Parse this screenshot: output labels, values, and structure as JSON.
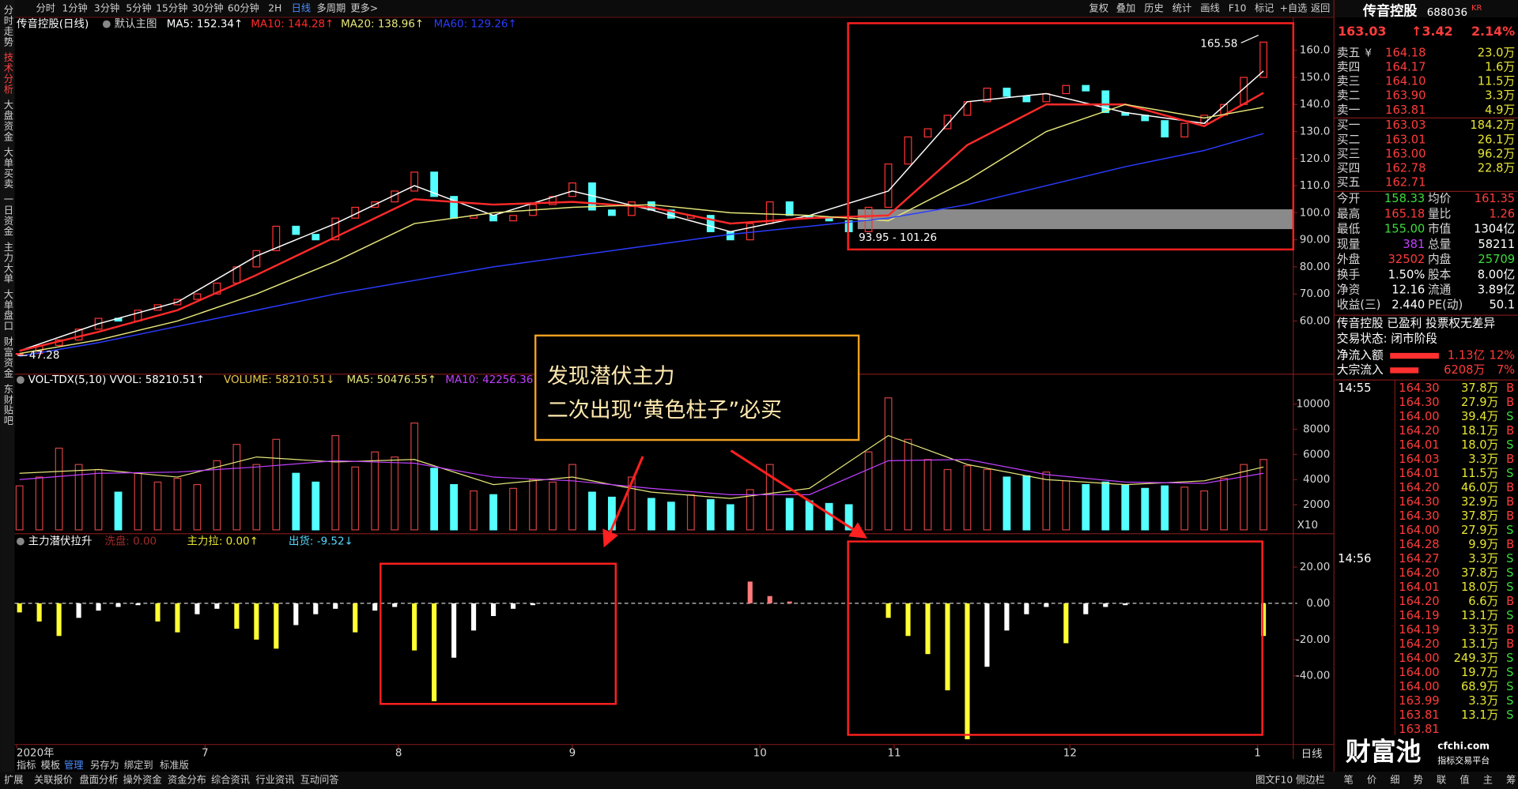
{
  "toolbar": {
    "periods": [
      "分时",
      "1分钟",
      "3分钟",
      "5分钟",
      "15分钟",
      "30分钟",
      "60分钟",
      "2H",
      "日线",
      "多周期",
      "更多>"
    ],
    "active_period_index": 8,
    "tools": [
      "复权",
      "叠加",
      "历史",
      "统计",
      "画线",
      "F10",
      "标记",
      "+自选",
      "返回"
    ]
  },
  "side_tabs": [
    "分时走势",
    "技术分析",
    "大盘资金",
    "大单买卖",
    "一日资金",
    "主力大单",
    "大单盘口",
    "财富资金",
    "东财贴吧"
  ],
  "side_active_index": 1,
  "main_chart": {
    "title": "传音控股(日线)",
    "template": "默认主图",
    "ma": [
      {
        "label": "MA5: 152.34↑",
        "color": "#ffffff",
        "x": [
          0,
          4,
          8,
          12,
          16,
          20,
          24,
          28,
          32,
          36,
          40,
          44,
          48,
          52,
          56,
          60,
          63
        ],
        "values": [
          49,
          59,
          67,
          84,
          96,
          110,
          99,
          108,
          101,
          93,
          99,
          108,
          141,
          144,
          137,
          133,
          152.34
        ]
      },
      {
        "label": "MA10: 144.28↑",
        "color": "#ff2a2a",
        "x": [
          0,
          4,
          8,
          12,
          16,
          20,
          24,
          28,
          32,
          36,
          40,
          44,
          48,
          52,
          56,
          60,
          63
        ],
        "values": [
          49,
          56,
          64,
          77,
          91,
          105,
          103,
          104,
          102,
          96,
          98,
          99,
          125,
          140,
          140,
          132,
          144.28
        ]
      },
      {
        "label": "MA20: 138.96↑",
        "color": "#e6e67a",
        "x": [
          0,
          4,
          8,
          12,
          16,
          20,
          24,
          28,
          32,
          36,
          40,
          44,
          48,
          52,
          56,
          60,
          63
        ],
        "values": [
          48,
          53,
          60,
          70,
          82,
          96,
          100,
          102,
          103,
          100,
          99,
          97,
          112,
          130,
          140,
          135,
          138.96
        ]
      },
      {
        "label": "MA60: 129.26↑",
        "color": "#2a3cff",
        "x": [
          0,
          4,
          8,
          12,
          16,
          20,
          24,
          28,
          32,
          36,
          40,
          44,
          48,
          52,
          56,
          60,
          63
        ],
        "values": [
          47,
          52,
          58,
          64,
          70,
          75,
          80,
          84,
          88,
          92,
          95,
          98,
          103,
          110,
          117,
          123,
          129.26
        ]
      }
    ],
    "closes": [
      48,
      51,
      53,
      57,
      61,
      60,
      64,
      66,
      68,
      70,
      74,
      80,
      86,
      95,
      92,
      90,
      98,
      102,
      104,
      108,
      115,
      106,
      98,
      99,
      97,
      99,
      103,
      106,
      111,
      101,
      99,
      104,
      101,
      98,
      99,
      93,
      90,
      96,
      104,
      99,
      98,
      97,
      93,
      102,
      118,
      128,
      131,
      136,
      141,
      146,
      143,
      141,
      144,
      147,
      145,
      137,
      136,
      134,
      128,
      133,
      136,
      140,
      150,
      163.03
    ],
    "up_color": "#ff3232",
    "down_color": "#54ffff",
    "ylim": [
      40,
      170
    ],
    "yticks": [
      {
        "value": 60,
        "label": "60.00"
      },
      {
        "value": 70,
        "label": "70.00"
      },
      {
        "value": 80,
        "label": "80.00"
      },
      {
        "value": 90,
        "label": "90.00"
      },
      {
        "value": 100,
        "label": "100.0"
      },
      {
        "value": 110,
        "label": "110.0"
      },
      {
        "value": 120,
        "label": "120.0"
      },
      {
        "value": 130,
        "label": "130.0"
      },
      {
        "value": 140,
        "label": "140.0"
      },
      {
        "value": 150,
        "label": "150.0"
      },
      {
        "value": 160,
        "label": "160.0"
      }
    ],
    "high_marker": 165.58,
    "low_marker": 47.28,
    "zone": {
      "low": 93.95,
      "high": 101.26,
      "label": "93.95 - 101.26"
    },
    "x_labels": [
      {
        "label": "2020年",
        "x": -0.15
      },
      {
        "label": "7",
        "x": 9.4
      },
      {
        "label": "8",
        "x": 19.2
      },
      {
        "label": "9",
        "x": 28
      },
      {
        "label": "10",
        "x": 37.5
      },
      {
        "label": "11",
        "x": 44.3
      },
      {
        "label": "12",
        "x": 53.2
      },
      {
        "label": "1",
        "x": 62.7
      }
    ],
    "period_label": "日线"
  },
  "volume_chart": {
    "labels": [
      {
        "text": "VOL-TDX(5,10) VVOL: 58210.51↑",
        "color": "#ffffff"
      },
      {
        "text": "VOLUME: 58210.51↓",
        "color": "#e6c84a"
      },
      {
        "text": "MA5: 50476.55↑",
        "color": "#e6e67a"
      },
      {
        "text": "MA10: 42256.36↑",
        "color": "#c040ff"
      }
    ],
    "values": [
      3500,
      4200,
      6500,
      5200,
      4800,
      3000,
      4500,
      3800,
      4100,
      3600,
      5500,
      6800,
      5200,
      7200,
      4500,
      3800,
      7500,
      5000,
      6200,
      5800,
      8500,
      4900,
      3600,
      3100,
      2800,
      3300,
      4000,
      3800,
      5200,
      3000,
      2600,
      4200,
      2500,
      2200,
      2800,
      2400,
      2000,
      3200,
      5200,
      2500,
      2300,
      2100,
      2000,
      6200,
      10500,
      7200,
      5600,
      4800,
      5100,
      4800,
      4200,
      4300,
      4600,
      3900,
      3600,
      3800,
      3600,
      3300,
      3500,
      3400,
      3100,
      4100,
      5200,
      5600
    ],
    "lines": [
      {
        "color": "#e6e67a",
        "x": [
          0,
          4,
          8,
          12,
          16,
          20,
          24,
          28,
          32,
          36,
          40,
          44,
          48,
          52,
          56,
          60,
          63
        ],
        "values": [
          4500,
          4800,
          4200,
          5800,
          5400,
          5600,
          3600,
          4200,
          3000,
          2500,
          3300,
          7500,
          5200,
          4000,
          3600,
          3900,
          5000
        ]
      },
      {
        "color": "#c040ff",
        "x": [
          0,
          4,
          8,
          12,
          16,
          20,
          24,
          28,
          32,
          36,
          40,
          44,
          48,
          52,
          56,
          60,
          63
        ],
        "values": [
          4000,
          4500,
          4600,
          5000,
          5500,
          5300,
          4200,
          3900,
          3300,
          2800,
          2800,
          5500,
          5600,
          4400,
          3800,
          3700,
          4500
        ]
      }
    ],
    "ylim": [
      0,
      11230
    ],
    "yticks": [
      2000,
      4000,
      6000,
      8000,
      10000
    ],
    "unit_label": "X10"
  },
  "indicator_chart": {
    "title": "主力潜伏拉升",
    "legend": [
      {
        "label": "洗盘: 0.00",
        "color": "#a02a2a"
      },
      {
        "label": "主力拉: 0.00↑",
        "color": "#e6e633"
      },
      {
        "label": "出货: -9.52↓",
        "color": "#54d8ff"
      }
    ],
    "values": [
      -5,
      -10,
      -18,
      -8,
      -4,
      -2,
      -1,
      -10,
      -16,
      -6,
      -3,
      -14,
      -20,
      -25,
      -12,
      -6,
      -3,
      -16,
      -4,
      -2,
      -26,
      -54,
      -30,
      -15,
      -7,
      -3,
      -1,
      0,
      0,
      0,
      0,
      0,
      0,
      0,
      0,
      0,
      0,
      12,
      4,
      1,
      0,
      0,
      0,
      0,
      -8,
      -18,
      -28,
      -48,
      -75,
      -35,
      -15,
      -6,
      -2,
      -22,
      -6,
      -2,
      -1,
      0,
      0,
      0,
      0,
      0,
      0,
      -18
    ],
    "colors": [
      "#ffff33",
      "#ffff33",
      "#ffff33",
      "#ffffff",
      "#ffffff",
      "#ffffff",
      "#ffffff",
      "#ffff33",
      "#ffff33",
      "#ffffff",
      "#ffffff",
      "#ffff33",
      "#ffff33",
      "#ffff33",
      "#ffffff",
      "#ffffff",
      "#ffffff",
      "#ffff33",
      "#ffffff",
      "#ffffff",
      "#ffff33",
      "#ffff33",
      "#ffffff",
      "#ffffff",
      "#ffffff",
      "#ffffff",
      "#ffffff",
      "#ffffff",
      "#ffffff",
      "#ffffff",
      "#ffffff",
      "#ffffff",
      "#ffffff",
      "#ffffff",
      "#ffffff",
      "#ffffff",
      "#ffffff",
      "#ff7a7a",
      "#ff7a7a",
      "#ff7a7a",
      "#ffffff",
      "#ffffff",
      "#ffffff",
      "#ffffff",
      "#ffff33",
      "#ffff33",
      "#ffff33",
      "#ffff33",
      "#ffff33",
      "#ffffff",
      "#ffffff",
      "#ffffff",
      "#ffffff",
      "#ffff33",
      "#ffffff",
      "#ffffff",
      "#ffffff",
      "#ffffff",
      "#ffffff",
      "#ffffff",
      "#ffffff",
      "#ffffff",
      "#ffffff",
      "#ffff33"
    ],
    "ylim": [
      -77.9,
      28.8
    ],
    "yticks": [
      {
        "value": 20,
        "label": "20.00"
      },
      {
        "value": 0,
        "label": "0.00"
      },
      {
        "value": -20,
        "label": "-20.00"
      },
      {
        "value": -40,
        "label": "-40.00"
      }
    ]
  },
  "callout": {
    "lines": [
      "发现潜伏主力",
      "二次出现“黄色柱子”必买"
    ]
  },
  "quote": {
    "name": "传音控股",
    "code": "688036",
    "badge": "KR",
    "price": "163.03",
    "change": "↑3.42",
    "change_pct": "2.14%",
    "currency": "¥"
  },
  "order_book": {
    "asks": [
      {
        "label": "卖五",
        "price": "164.18",
        "volume": "23.0万"
      },
      {
        "label": "卖四",
        "price": "164.17",
        "volume": "1.6万"
      },
      {
        "label": "卖三",
        "price": "164.10",
        "volume": "11.5万"
      },
      {
        "label": "卖二",
        "price": "163.90",
        "volume": "3.3万"
      },
      {
        "label": "卖一",
        "price": "163.81",
        "volume": "4.9万"
      }
    ],
    "bids": [
      {
        "label": "买一",
        "price": "163.03",
        "volume": "184.2万"
      },
      {
        "label": "买二",
        "price": "163.01",
        "volume": "26.1万"
      },
      {
        "label": "买三",
        "price": "163.00",
        "volume": "96.2万"
      },
      {
        "label": "买四",
        "price": "162.78",
        "volume": "22.8万"
      },
      {
        "label": "买五",
        "price": "162.71"
      }
    ]
  },
  "stats": [
    {
      "cells": [
        "今开",
        "158.33",
        "均价",
        "161.35"
      ],
      "colors": [
        "#3cdc3c",
        "#ff3c3c"
      ]
    },
    {
      "cells": [
        "最高",
        "165.18",
        "量比",
        "1.26"
      ],
      "colors": [
        "#ff3c3c",
        "#ff3c3c"
      ]
    },
    {
      "cells": [
        "最低",
        "155.00",
        "市值",
        "1304亿"
      ],
      "colors": [
        "#3cdc3c",
        "#ffffff"
      ]
    },
    {
      "cells": [
        "现量",
        "381",
        "总量",
        "58211"
      ],
      "colors": [
        "#c040ff",
        "#ffffff"
      ]
    },
    {
      "cells": [
        "外盘",
        "32502",
        "内盘",
        "25709"
      ],
      "colors": [
        "#ff3c3c",
        "#3cdc3c"
      ]
    },
    {
      "cells": [
        "换手",
        "1.50%",
        "股本",
        "8.00亿"
      ],
      "colors": [
        "#ffffff",
        "#ffffff"
      ]
    },
    {
      "cells": [
        "净资",
        "12.16",
        "流通",
        "3.89亿"
      ],
      "colors": [
        "#ffffff",
        "#ffffff"
      ]
    },
    {
      "cells": [
        "收益(三)",
        "2.440",
        "PE(动)",
        "50.1"
      ],
      "colors": [
        "#ffffff",
        "#ffffff"
      ]
    }
  ],
  "company_tags": "传音控股 已盈利 投票权无差异",
  "trade_status": "交易状态: 闭市阶段",
  "flows": [
    {
      "label": "净流入额",
      "amount": "1.13亿",
      "pct": "12%",
      "bar": 12
    },
    {
      "label": "大宗流入",
      "amount": "6208万",
      "pct": "7%",
      "bar": 7
    }
  ],
  "ticks": [
    {
      "time": "14:55",
      "rows": [
        [
          "164.30",
          "37.8万",
          "B"
        ],
        [
          "164.30",
          "27.9万",
          "B"
        ],
        [
          "164.00",
          "39.4万",
          "S"
        ],
        [
          "164.20",
          "18.1万",
          "B"
        ],
        [
          "164.01",
          "18.0万",
          "S"
        ],
        [
          "164.03",
          "3.3万",
          "B"
        ],
        [
          "164.01",
          "11.5万",
          "S"
        ],
        [
          "164.20",
          "46.0万",
          "B"
        ],
        [
          "164.30",
          "32.9万",
          "B"
        ],
        [
          "164.30",
          "37.8万",
          "B"
        ],
        [
          "164.00",
          "27.9万",
          "S"
        ],
        [
          "164.28",
          "9.9万",
          "B"
        ]
      ]
    },
    {
      "time": "14:56",
      "rows": [
        [
          "164.27",
          "3.3万",
          "S"
        ],
        [
          "164.20",
          "37.8万",
          "S"
        ],
        [
          "164.01",
          "18.0万",
          "S"
        ],
        [
          "164.20",
          "6.6万",
          "B"
        ],
        [
          "164.19",
          "13.1万",
          "S"
        ],
        [
          "164.19",
          "3.3万",
          "B"
        ],
        [
          "164.20",
          "13.1万",
          "B"
        ],
        [
          "164.00",
          "249.3万",
          "S"
        ],
        [
          "164.00",
          "19.7万",
          "S"
        ],
        [
          "164.00",
          "68.9万",
          "S"
        ],
        [
          "163.99",
          "3.3万",
          "S"
        ],
        [
          "163.81",
          "13.1万",
          "S"
        ],
        [
          "163.81",
          "",
          ""
        ]
      ]
    }
  ],
  "bottom_tabs": [
    "指标",
    "模板",
    "管理",
    "另存为",
    "绑定到",
    "标准版"
  ],
  "bottom_active_index": 2,
  "status_bar": {
    "left": [
      "扩展",
      "关联报价",
      "盘面分析",
      "操外资金",
      "资金分布",
      "综合资讯",
      "行业资讯",
      "互动问答"
    ],
    "right": "图文F10 侧边栏",
    "buttons": [
      "笔",
      "价",
      "细",
      "势",
      "联",
      "值",
      "主",
      "筹"
    ]
  },
  "watermark": {
    "brand": "财富池",
    "site": "cfchi.com",
    "tagline": "指标交易平台"
  }
}
